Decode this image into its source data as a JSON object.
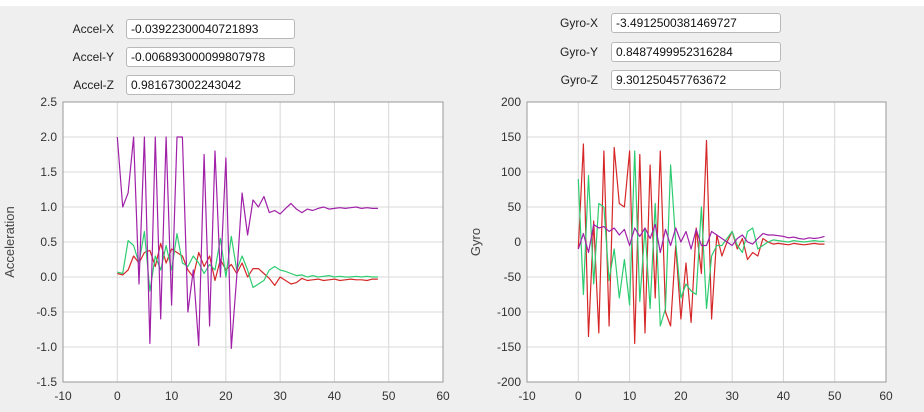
{
  "accel_fields": [
    {
      "label": "Accel-X",
      "value": "-0.03922300040721893"
    },
    {
      "label": "Accel-Y",
      "value": "-0.006893000099807978"
    },
    {
      "label": "Accel-Z",
      "value": "0.981673002243042"
    }
  ],
  "gyro_fields": [
    {
      "label": "Gyro-X",
      "value": "-3.4912500381469727"
    },
    {
      "label": "Gyro-Y",
      "value": "0.8487499952316284"
    },
    {
      "label": "Gyro-Z",
      "value": "9.301250457763672"
    }
  ],
  "chart_data": [
    {
      "type": "line",
      "ylabel": "Acceleration",
      "xlabel": "",
      "xlim": [
        -10,
        60
      ],
      "ylim": [
        -1.5,
        2.5
      ],
      "xticks": [
        -10,
        0,
        10,
        20,
        30,
        40,
        50,
        60
      ],
      "yticks": [
        -1.5,
        -1.0,
        -0.5,
        0.0,
        0.5,
        1.0,
        1.5,
        2.0,
        2.5
      ],
      "ytick_labels": [
        "-1.5",
        "-1.0",
        "-0.5",
        "0.0",
        "0.5",
        "1.0",
        "1.5",
        "2.0",
        "2.5"
      ],
      "grid": true,
      "series": [
        {
          "color": "#d62728",
          "x": [
            0,
            1,
            2,
            3,
            4,
            5,
            6,
            7,
            8,
            9,
            10,
            11,
            12,
            13,
            14,
            15,
            16,
            17,
            18,
            19,
            20,
            21,
            22,
            23,
            24,
            25,
            26,
            27,
            28,
            29,
            30,
            31,
            32,
            33,
            34,
            35,
            36,
            37,
            38,
            39,
            40,
            41,
            42,
            43,
            44,
            45,
            46,
            47,
            48
          ],
          "values": [
            0.05,
            0.03,
            0.1,
            0.3,
            0.2,
            0.35,
            0.38,
            0.15,
            0.48,
            0.2,
            0.4,
            0.35,
            0.3,
            0.1,
            0.0,
            0.35,
            0.15,
            0.3,
            -0.05,
            0.25,
            0.1,
            0.18,
            0.05,
            0.2,
            0.0,
            0.12,
            0.12,
            0.05,
            -0.02,
            -0.12,
            0.0,
            -0.05,
            -0.1,
            -0.08,
            -0.02,
            -0.05,
            -0.04,
            -0.03,
            -0.05,
            -0.04,
            -0.03,
            -0.05,
            -0.04,
            -0.03,
            -0.04,
            -0.04,
            -0.05,
            -0.03,
            -0.03
          ]
        },
        {
          "color": "#2ecc71",
          "x": [
            0,
            1,
            2,
            3,
            4,
            5,
            6,
            7,
            8,
            9,
            10,
            11,
            12,
            13,
            14,
            15,
            16,
            17,
            18,
            19,
            20,
            21,
            22,
            23,
            24,
            25,
            26,
            27,
            28,
            29,
            30,
            31,
            32,
            33,
            34,
            35,
            36,
            37,
            38,
            39,
            40,
            41,
            42,
            43,
            44,
            45,
            46,
            47,
            48
          ],
          "values": [
            0.07,
            0.05,
            0.52,
            0.45,
            0.2,
            0.65,
            -0.2,
            0.3,
            0.1,
            0.45,
            0.1,
            0.62,
            0.2,
            0.15,
            0.3,
            0.2,
            0.05,
            0.18,
            0.1,
            0.55,
            0.0,
            0.58,
            0.1,
            0.3,
            0.1,
            -0.15,
            -0.1,
            -0.05,
            0.1,
            0.15,
            0.1,
            0.08,
            0.05,
            0.02,
            0.03,
            0.0,
            0.02,
            0.0,
            0.01,
            0.02,
            0.0,
            0.01,
            0.0,
            0.0,
            0.01,
            0.0,
            0.01,
            0.0,
            0.0
          ]
        },
        {
          "color": "#a020a8",
          "x": [
            0,
            1,
            2,
            3,
            4,
            5,
            6,
            7,
            8,
            9,
            10,
            11,
            12,
            13,
            14,
            15,
            16,
            17,
            18,
            19,
            20,
            21,
            22,
            23,
            24,
            25,
            26,
            27,
            28,
            29,
            30,
            31,
            32,
            33,
            34,
            35,
            36,
            37,
            38,
            39,
            40,
            41,
            42,
            43,
            44,
            45,
            46,
            47,
            48
          ],
          "values": [
            2.0,
            1.0,
            1.2,
            2.0,
            -0.1,
            2.0,
            -0.95,
            2.0,
            -0.6,
            2.0,
            -0.4,
            2.0,
            2.0,
            -0.5,
            0.1,
            -0.98,
            1.75,
            -0.7,
            1.8,
            0.0,
            1.7,
            -1.02,
            0.0,
            1.2,
            0.6,
            1.1,
            1.0,
            1.15,
            0.92,
            0.95,
            0.9,
            0.98,
            1.05,
            0.97,
            0.92,
            0.97,
            0.95,
            0.98,
            1.0,
            0.97,
            0.98,
            0.99,
            0.98,
            0.99,
            1.0,
            0.98,
            0.99,
            0.98,
            0.98
          ]
        }
      ]
    },
    {
      "type": "line",
      "ylabel": "Gyro",
      "xlabel": "",
      "xlim": [
        -10,
        60
      ],
      "ylim": [
        -200,
        200
      ],
      "xticks": [
        -10,
        0,
        10,
        20,
        30,
        40,
        50,
        60
      ],
      "yticks": [
        -200,
        -150,
        -100,
        -50,
        0,
        50,
        100,
        150,
        200
      ],
      "ytick_labels": [
        "-200",
        "-150",
        "-100",
        "-50",
        "0",
        "50",
        "100",
        "150",
        "200"
      ],
      "grid": true,
      "series": [
        {
          "color": "#d62728",
          "x": [
            0,
            1,
            2,
            3,
            4,
            5,
            6,
            7,
            8,
            9,
            10,
            11,
            12,
            13,
            14,
            15,
            16,
            17,
            18,
            19,
            20,
            21,
            22,
            23,
            24,
            25,
            26,
            27,
            28,
            29,
            30,
            31,
            32,
            33,
            34,
            35,
            36,
            37,
            38,
            39,
            40,
            41,
            42,
            43,
            44,
            45,
            46,
            47,
            48
          ],
          "values": [
            -10,
            140,
            -135,
            30,
            -130,
            130,
            -120,
            135,
            55,
            50,
            130,
            -145,
            125,
            -130,
            110,
            -80,
            130,
            -100,
            -120,
            -5,
            -110,
            -30,
            -115,
            20,
            -45,
            145,
            -110,
            10,
            -20,
            0,
            15,
            -10,
            5,
            -25,
            -15,
            -20,
            5,
            0,
            -3,
            -2,
            -3,
            -4,
            -2,
            -3,
            -4,
            -3,
            -2,
            -3,
            -3
          ]
        },
        {
          "color": "#2ecc71",
          "x": [
            0,
            1,
            2,
            3,
            4,
            5,
            6,
            7,
            8,
            9,
            10,
            11,
            12,
            13,
            14,
            15,
            16,
            17,
            18,
            19,
            20,
            21,
            22,
            23,
            24,
            25,
            26,
            27,
            28,
            29,
            30,
            31,
            32,
            33,
            34,
            35,
            36,
            37,
            38,
            39,
            40,
            41,
            42,
            43,
            44,
            45,
            46,
            47,
            48
          ],
          "values": [
            90,
            -75,
            95,
            -60,
            55,
            50,
            -55,
            -10,
            -80,
            -25,
            -90,
            130,
            -85,
            20,
            -95,
            55,
            -120,
            -95,
            110,
            0,
            -80,
            -60,
            -70,
            -75,
            50,
            -95,
            -20,
            -5,
            -5,
            5,
            15,
            -5,
            -15,
            15,
            20,
            -10,
            -5,
            0,
            3,
            2,
            1,
            0,
            2,
            1,
            0,
            1,
            2,
            1,
            1
          ]
        },
        {
          "color": "#a020a8",
          "x": [
            0,
            1,
            2,
            3,
            4,
            5,
            6,
            7,
            8,
            9,
            10,
            11,
            12,
            13,
            14,
            15,
            16,
            17,
            18,
            19,
            20,
            21,
            22,
            23,
            24,
            25,
            26,
            27,
            28,
            29,
            30,
            31,
            32,
            33,
            34,
            35,
            36,
            37,
            38,
            39,
            40,
            41,
            42,
            43,
            44,
            45,
            46,
            47,
            48
          ],
          "values": [
            -10,
            12,
            -15,
            25,
            20,
            22,
            15,
            20,
            10,
            18,
            -5,
            20,
            8,
            20,
            5,
            25,
            -15,
            18,
            -5,
            20,
            0,
            15,
            -10,
            18,
            -5,
            -5,
            15,
            10,
            5,
            0,
            -5,
            5,
            10,
            0,
            -3,
            5,
            12,
            10,
            10,
            9,
            8,
            6,
            7,
            5,
            4,
            6,
            5,
            6,
            8
          ]
        }
      ]
    }
  ]
}
